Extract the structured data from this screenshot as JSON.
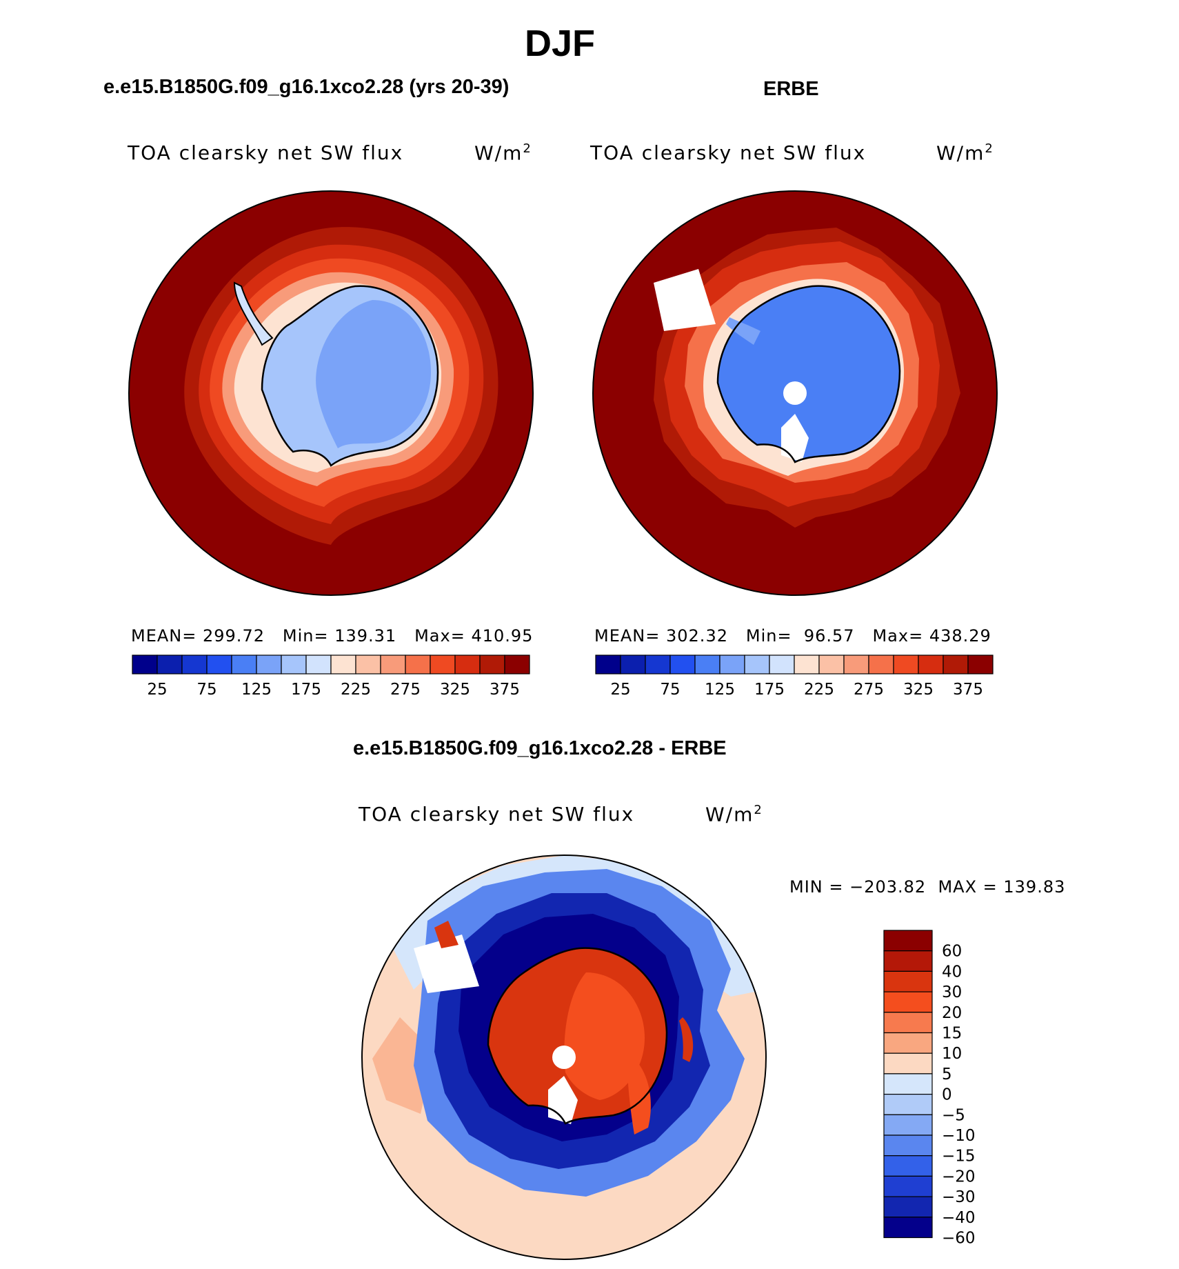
{
  "page": {
    "title": "DJF",
    "colors": {
      "ocean_max": "#8b0000",
      "continent_low": "#4a7ff5",
      "coast": "#000000"
    }
  },
  "panels": [
    {
      "heading": "e.e15.B1850G.f09_g16.1xco2.28 (yrs 20-39)",
      "left_label": "TOA clearsky net SW flux",
      "units": "W/m",
      "units_sup": "2",
      "stats": {
        "mean_label": "MEAN=",
        "mean": "299.72",
        "min_label": "Min=",
        "min": "139.31",
        "max_label": "Max=",
        "max": "410.95"
      }
    },
    {
      "heading": "ERBE",
      "left_label": "TOA clearsky net SW flux",
      "units": "W/m",
      "units_sup": "2",
      "stats": {
        "mean_label": "MEAN=",
        "mean": "302.32",
        "min_label": "Min=",
        "min": "96.57",
        "max_label": "Max=",
        "max": "438.29"
      }
    },
    {
      "heading": "e.e15.B1850G.f09_g16.1xco2.28 - ERBE",
      "left_label": "TOA clearsky net SW flux",
      "units": "W/m",
      "units_sup": "2",
      "stats_text": "MIN = −203.82  MAX = 139.83"
    }
  ],
  "colorbar_abs": {
    "colors": [
      "#00008b",
      "#0b1fae",
      "#1537d1",
      "#2250f0",
      "#4a7ff5",
      "#7aa3f8",
      "#a6c5fb",
      "#d2e3fd",
      "#fde3d2",
      "#fbc1a6",
      "#f89b7a",
      "#f5714a",
      "#ef4a22",
      "#d62d10",
      "#b01a06",
      "#8b0000"
    ],
    "labels": [
      "25",
      "75",
      "125",
      "175",
      "225",
      "275",
      "325",
      "375"
    ]
  },
  "colorbar_diff": {
    "colors": [
      "#8b0000",
      "#b41808",
      "#d9350f",
      "#f44e1e",
      "#f77a4e",
      "#f9a780",
      "#fcd9c2",
      "#d5e6fb",
      "#b0cbf8",
      "#84a9f4",
      "#5a86ef",
      "#3361e9",
      "#1f3fd2",
      "#1226b0",
      "#04008b"
    ],
    "labels": [
      "60",
      "40",
      "30",
      "20",
      "15",
      "10",
      "5",
      "0",
      "−5",
      "−10",
      "−15",
      "−20",
      "−30",
      "−40",
      "−60"
    ]
  }
}
